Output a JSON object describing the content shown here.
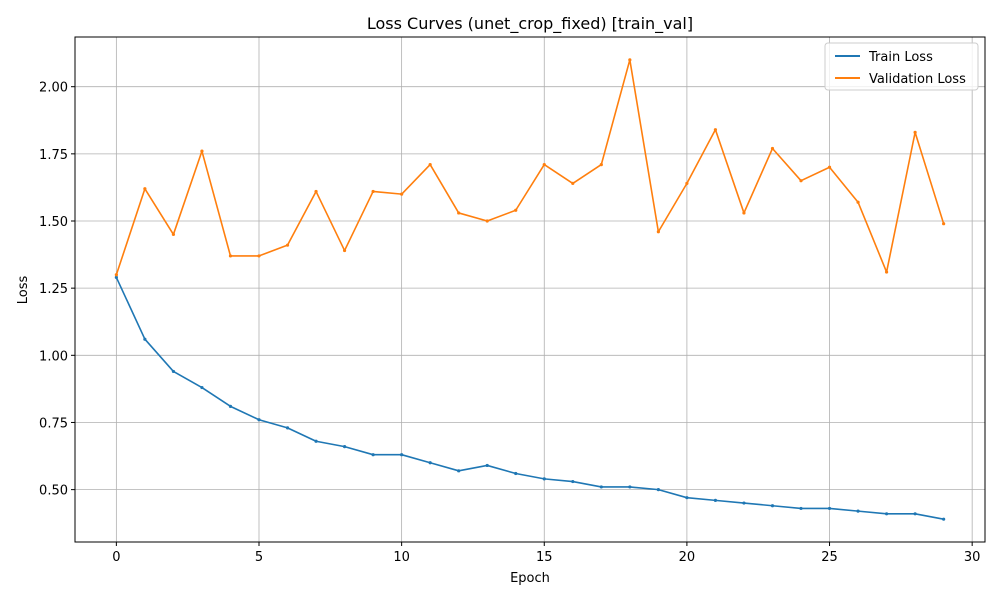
{
  "chart_data": {
    "type": "line",
    "title": "Loss Curves (unet_crop_fixed) [train_val]",
    "xlabel": "Epoch",
    "ylabel": "Loss",
    "xlim": [
      -1.45,
      30.45
    ],
    "ylim": [
      0.305,
      2.185
    ],
    "xticks": [
      0,
      5,
      10,
      15,
      20,
      25,
      30
    ],
    "yticks": [
      0.5,
      0.75,
      1.0,
      1.25,
      1.5,
      1.75,
      2.0
    ],
    "xtick_labels": [
      "0",
      "5",
      "10",
      "15",
      "20",
      "25",
      "30"
    ],
    "ytick_labels": [
      "0.50",
      "0.75",
      "1.00",
      "1.25",
      "1.50",
      "1.75",
      "2.00"
    ],
    "grid": true,
    "legend_position": "top-right",
    "x": [
      0,
      1,
      2,
      3,
      4,
      5,
      6,
      7,
      8,
      9,
      10,
      11,
      12,
      13,
      14,
      15,
      16,
      17,
      18,
      19,
      20,
      21,
      22,
      23,
      24,
      25,
      26,
      27,
      28,
      29
    ],
    "series": [
      {
        "name": "Train Loss",
        "color": "#1f77b4",
        "values": [
          1.29,
          1.06,
          0.94,
          0.88,
          0.81,
          0.76,
          0.73,
          0.68,
          0.66,
          0.63,
          0.63,
          0.6,
          0.57,
          0.59,
          0.56,
          0.54,
          0.53,
          0.51,
          0.51,
          0.5,
          0.47,
          0.46,
          0.45,
          0.44,
          0.43,
          0.43,
          0.42,
          0.41,
          0.41,
          0.39
        ]
      },
      {
        "name": "Validation Loss",
        "color": "#ff7f0e",
        "values": [
          1.3,
          1.62,
          1.45,
          1.76,
          1.37,
          1.37,
          1.41,
          1.61,
          1.39,
          1.61,
          1.6,
          1.71,
          1.53,
          1.5,
          1.54,
          1.71,
          1.64,
          1.71,
          2.1,
          1.46,
          1.64,
          1.84,
          1.53,
          1.77,
          1.65,
          1.7,
          1.57,
          1.31,
          1.83,
          1.49
        ]
      }
    ]
  }
}
